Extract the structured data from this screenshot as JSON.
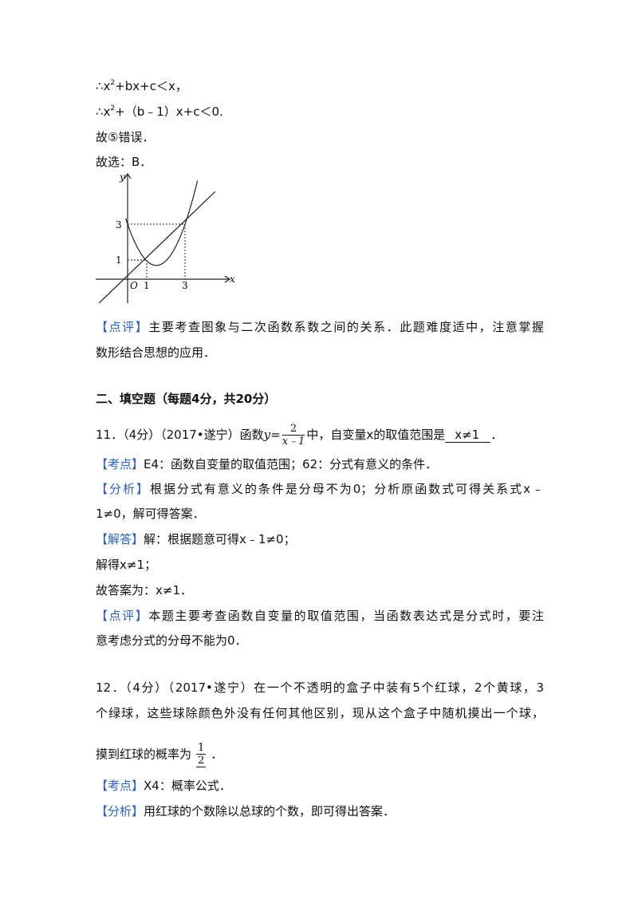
{
  "solution_tail": {
    "l1": [
      "∴x",
      "2",
      "+bx+c＜x，"
    ],
    "l2": [
      "∴x",
      "2",
      "+（b﹣1）x+c＜0."
    ],
    "l3": "故⑤错误．",
    "l4": "故选：B．"
  },
  "figure": {
    "y_label": "y",
    "x_label": "x",
    "origin": "O",
    "y_ticks": [
      "3",
      "1"
    ],
    "x_ticks": [
      "1",
      "3"
    ]
  },
  "comment1": {
    "tag": "【点评】",
    "line1": "主要考查图象与二次函数系数之间的关系．此题难度适中，注意掌握",
    "line2": "数形结合思想的应用．"
  },
  "section_heading": "二、填空题（每题4分，共20分）",
  "q11": {
    "stem_a": "11．（4分）（2017•遂宁）函数",
    "func_var": "y",
    "eq": "=",
    "numerator": "2",
    "denominator": "x﹣1",
    "stem_b": "中，自变量x的取值范围是",
    "answer": "x≠1",
    "end": "．",
    "kaodian": {
      "tag": "【考点】",
      "text": "E4：函数自变量的取值范围；62：分式有意义的条件．"
    },
    "fenxi": {
      "tag": "【分析】",
      "line1": "根据分式有意义的条件是分母不为0；分析原函数式可得关系式x﹣",
      "line2": "1≠0，解可得答案．"
    },
    "jieda": {
      "tag": "【解答】",
      "line1": "解：根据题意可得x﹣1≠0；",
      "line2": "解得x≠1；",
      "line3": "故答案为：x≠1．"
    },
    "dianping": {
      "tag": "【点评】",
      "line1": "本题主要考查函数自变量的取值范围，当函数表达式是分式时，要注",
      "line2": "意考虑分式的分母不能为0．"
    }
  },
  "q12": {
    "line1": "12．（4分）（2017•遂宁）在一个不透明的盒子中装有5个红球，2个黄球，3",
    "line2": "个绿球，这些球除颜色外没有任何其他区别，现从这个盒子中随机摸出一个球，",
    "line3": "摸到红球的概率为",
    "numerator": "1",
    "denominator": "2",
    "end": "．",
    "kaodian": {
      "tag": "【考点】",
      "text": "X4：概率公式．"
    },
    "fenxi": {
      "tag": "【分析】",
      "text": "用红球的个数除以总球的个数，即可得出答案．"
    }
  }
}
